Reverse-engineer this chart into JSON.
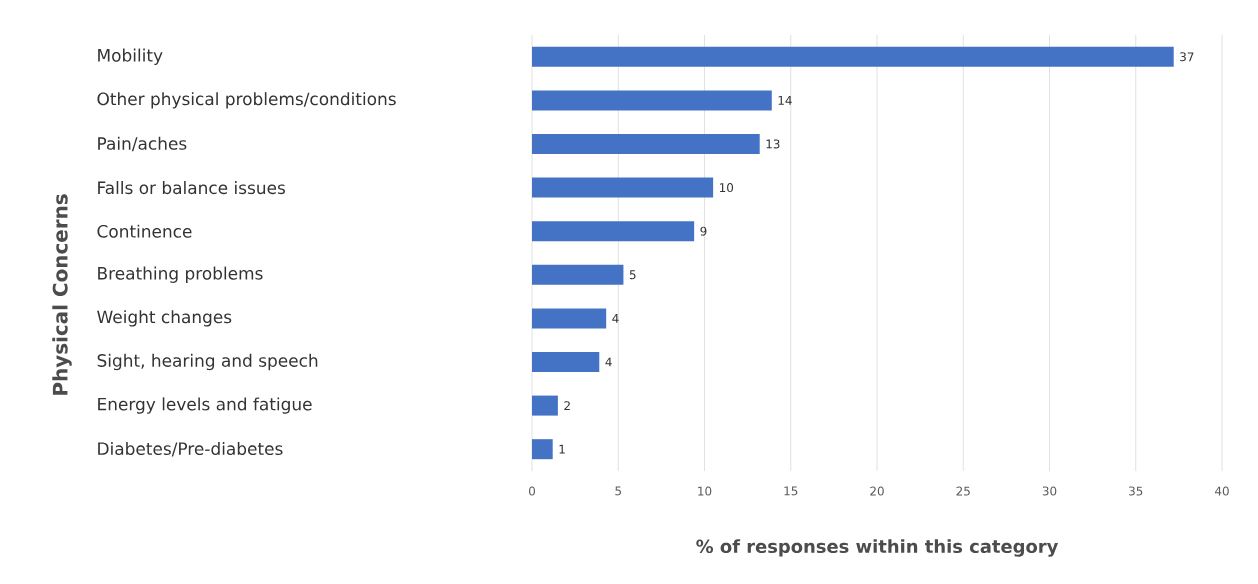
{
  "chart_data": {
    "type": "bar",
    "orientation": "horizontal",
    "ylabel": "Physical Concerns",
    "xlabel": "% of responses within this category",
    "categories": [
      "Mobility",
      "Other physical problems/conditions",
      "Pain/aches",
      "Falls or balance issues",
      "Continence",
      "Breathing problems",
      "Weight changes",
      "Sight, hearing and speech",
      "Energy levels and fatigue",
      "Diabetes/Pre-diabetes"
    ],
    "values": [
      37.2,
      13.9,
      13.2,
      10.5,
      9.4,
      5.3,
      4.3,
      3.9,
      1.5,
      1.2
    ],
    "value_labels": [
      "37",
      "14",
      "13",
      "10",
      "9",
      "5",
      "4",
      "4",
      "2",
      "1"
    ],
    "color": "#4472c4",
    "xlim": [
      0,
      40
    ],
    "xticks": [
      0,
      5,
      10,
      15,
      20,
      25,
      30,
      35,
      40
    ],
    "grid": "x"
  }
}
